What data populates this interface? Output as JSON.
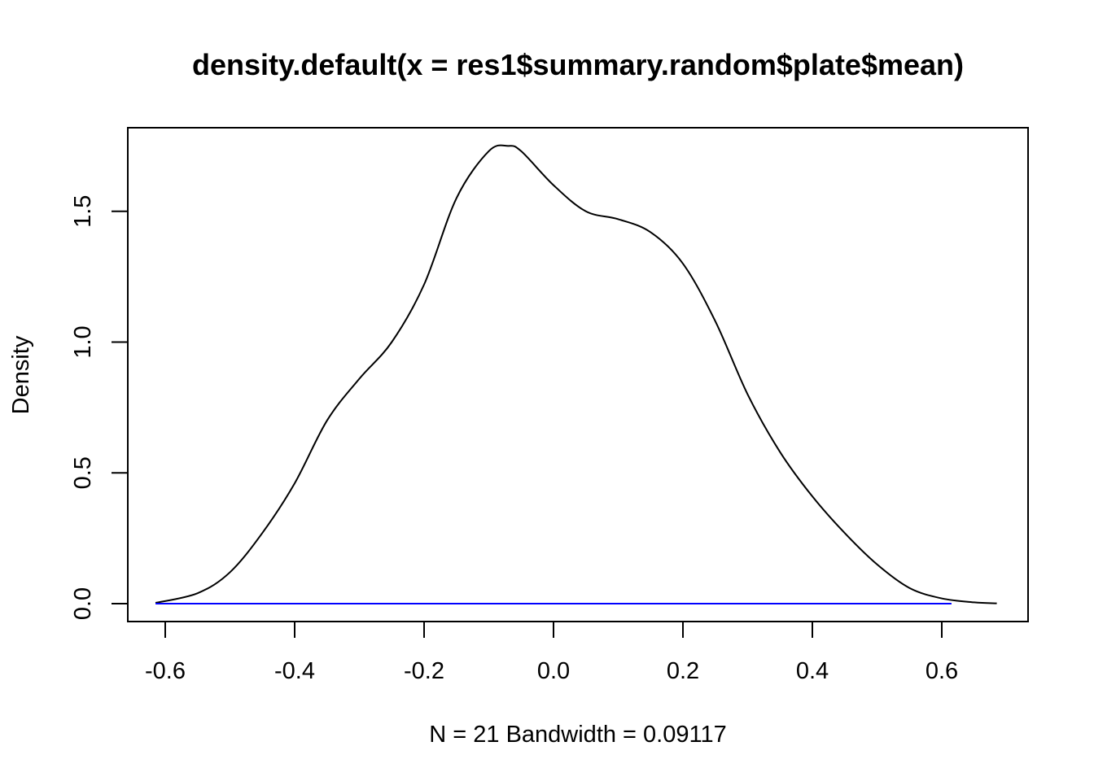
{
  "chart_data": {
    "type": "line",
    "title": "density.default(x = res1$summary.random$plate$mean)",
    "xlabel": "N = 21   Bandwidth = 0.09117",
    "ylabel": "Density",
    "xlim": [
      -0.6,
      0.7
    ],
    "ylim": [
      0.0,
      1.75
    ],
    "x_ticks": [
      "-0.6",
      "-0.4",
      "-0.2",
      "0.0",
      "0.2",
      "0.4",
      "0.6"
    ],
    "y_ticks": [
      "0.0",
      "0.5",
      "1.0",
      "1.5"
    ],
    "grid": false,
    "series": [
      {
        "color": "#000000",
        "x": [
          -0.615,
          -0.55,
          -0.5,
          -0.45,
          -0.4,
          -0.35,
          -0.3,
          -0.25,
          -0.2,
          -0.15,
          -0.1,
          -0.07,
          -0.05,
          0.0,
          0.05,
          0.1,
          0.15,
          0.2,
          0.25,
          0.3,
          0.35,
          0.4,
          0.45,
          0.5,
          0.55,
          0.6,
          0.65,
          0.685
        ],
        "y": [
          0.003,
          0.04,
          0.12,
          0.27,
          0.46,
          0.7,
          0.86,
          1.0,
          1.22,
          1.55,
          1.73,
          1.75,
          1.73,
          1.6,
          1.5,
          1.47,
          1.42,
          1.3,
          1.08,
          0.8,
          0.58,
          0.41,
          0.27,
          0.15,
          0.06,
          0.02,
          0.005,
          0.001
        ]
      },
      {
        "color": "#0000ff",
        "x": [
          -0.615,
          0.615
        ],
        "y": [
          0.0,
          0.0
        ]
      }
    ]
  }
}
